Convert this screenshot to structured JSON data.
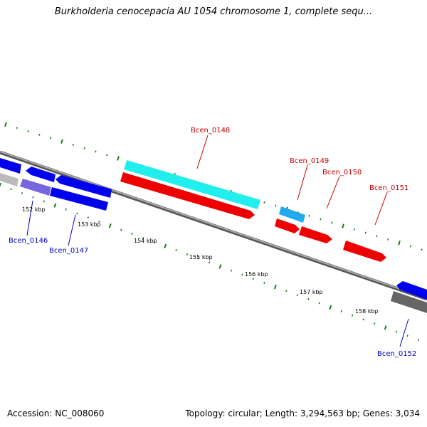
{
  "title": "Burkholderia cenocepacia AU 1054 chromosome 1, complete sequ...",
  "accession_line": "Accession: NC_008060",
  "stats_line": "Topology: circular; Length: 3,294,563 bp; Genes: 3,034",
  "ruler_labels": [
    "152 kbp",
    "153 kbp",
    "154 kbp",
    "155 kbp",
    "156 kbp",
    "157 kbp",
    "158 kbp"
  ],
  "gene_labels": [
    "Bcen_0146",
    "Bcen_0147",
    "Bcen_0148",
    "Bcen_0149",
    "Bcen_0150",
    "Bcen_0151",
    "Bcen_0152"
  ],
  "colors": {
    "backbone": "#808080",
    "tick": "#1a7a1a",
    "forward_label": "#cc0000",
    "reverse_label": "#0000cc",
    "gene_red": "#ee0000",
    "gene_cyan": "#22eeee",
    "gene_lightblue": "#22aaee",
    "gene_blue": "#0000ee",
    "gene_purple": "#7766dd",
    "gene_gray": "#666666",
    "gene_lightgray": "#bbbbbb"
  }
}
